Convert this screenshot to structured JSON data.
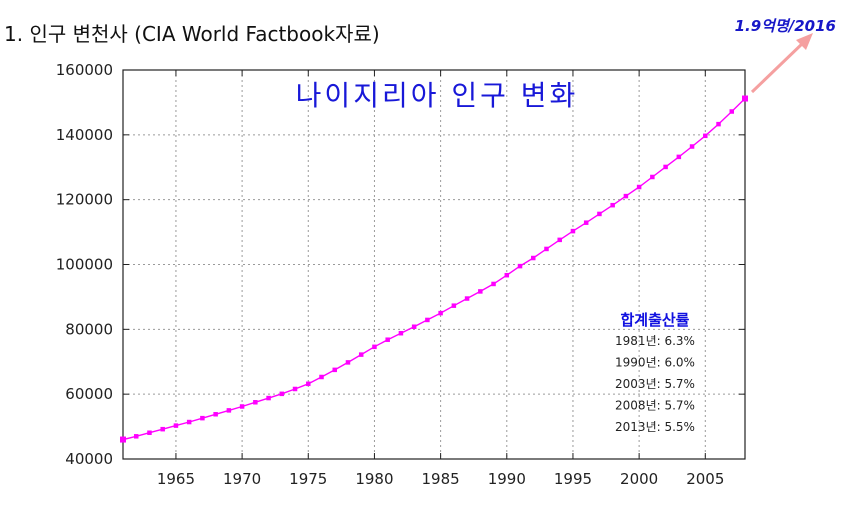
{
  "heading": "1. 인구 변천사 (CIA World Factbook자료)",
  "chart_data": {
    "type": "line",
    "title": "나이지리아 인구 변화",
    "xlabel": "",
    "ylabel": "",
    "xlim": [
      1961,
      2008
    ],
    "ylim": [
      40000,
      160000
    ],
    "grid": true,
    "x_ticks": [
      1965,
      1970,
      1975,
      1980,
      1985,
      1990,
      1995,
      2000,
      2005
    ],
    "y_ticks": [
      40000,
      60000,
      80000,
      100000,
      120000,
      140000,
      160000
    ],
    "series": [
      {
        "color": "#ff00ff",
        "x": [
          1961,
          1962,
          1963,
          1964,
          1965,
          1966,
          1967,
          1968,
          1969,
          1970,
          1971,
          1972,
          1973,
          1974,
          1975,
          1976,
          1977,
          1978,
          1979,
          1980,
          1981,
          1982,
          1983,
          1984,
          1985,
          1986,
          1987,
          1988,
          1989,
          1990,
          1991,
          1992,
          1993,
          1994,
          1995,
          1996,
          1997,
          1998,
          1999,
          2000,
          2001,
          2002,
          2003,
          2004,
          2005,
          2006,
          2007,
          2008
        ],
        "y": [
          46000,
          47000,
          48100,
          49200,
          50300,
          51400,
          52600,
          53800,
          55000,
          56200,
          57500,
          58800,
          60100,
          61600,
          63200,
          65300,
          67500,
          69800,
          72200,
          74600,
          76800,
          78800,
          80800,
          82900,
          85000,
          87300,
          89500,
          91700,
          94000,
          96700,
          99500,
          102000,
          104800,
          107600,
          110300,
          112900,
          115600,
          118300,
          121100,
          123900,
          127000,
          130100,
          133200,
          136400,
          139700,
          143300,
          147200,
          151200
        ]
      }
    ],
    "annotation": {
      "title": "합계출산률",
      "lines": [
        "1981년: 6.3%",
        "1990년: 6.0%",
        "2003년: 5.7%",
        "2008년: 5.7%",
        "2013년: 5.5%"
      ]
    },
    "corner_note": "1.9억명/2016",
    "arrow_color": "#f5a0a0"
  }
}
